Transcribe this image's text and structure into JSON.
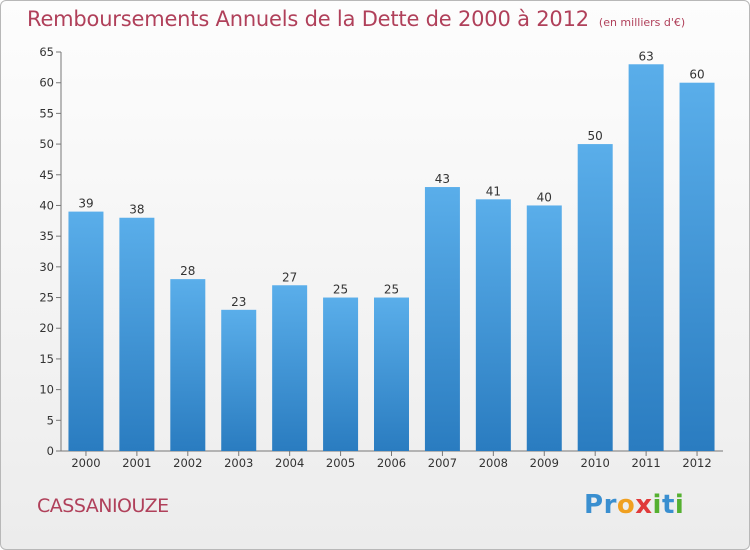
{
  "header": {
    "title": "Remboursements Annuels de la Dette de 2000 à 2012",
    "unit": "(en milliers d'€)"
  },
  "footer": {
    "commune": "CASSANIOUZE",
    "logo_letters": [
      {
        "ch": "P",
        "color": "#3a8fd0"
      },
      {
        "ch": "r",
        "color": "#3a8fd0"
      },
      {
        "ch": "o",
        "color": "#f0a020"
      },
      {
        "ch": "x",
        "color": "#e03a3a"
      },
      {
        "ch": "i",
        "color": "#55b030"
      },
      {
        "ch": "t",
        "color": "#3a8fd0"
      },
      {
        "ch": "i",
        "color": "#55b030"
      }
    ]
  },
  "chart_data": {
    "type": "bar",
    "title": "Remboursements Annuels de la Dette de 2000 à 2012",
    "categories": [
      "2000",
      "2001",
      "2002",
      "2003",
      "2004",
      "2005",
      "2006",
      "2007",
      "2008",
      "2009",
      "2010",
      "2011",
      "2012"
    ],
    "values": [
      39,
      38,
      28,
      23,
      27,
      25,
      25,
      43,
      41,
      40,
      50,
      63,
      60
    ],
    "ylim": [
      0,
      65
    ],
    "yticks": [
      0,
      5,
      10,
      15,
      20,
      25,
      30,
      35,
      40,
      45,
      50,
      55,
      60,
      65
    ],
    "grid": false,
    "bar_color_top": "#5aaeea",
    "bar_color_bottom": "#2a7cc0"
  }
}
